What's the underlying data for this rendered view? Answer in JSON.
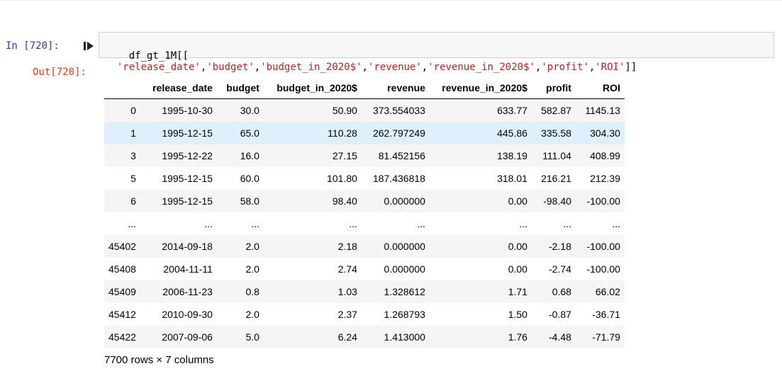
{
  "cell": {
    "in_prompt": "In [720]:",
    "out_prompt": "Out[720]:",
    "code": {
      "prefix": "df_gt_1M[[",
      "args": [
        "'release_date'",
        "'budget'",
        "'budget_in_2020$'",
        "'revenue'",
        "'revenue_in_2020$'",
        "'profit'",
        "'ROI'"
      ],
      "suffix": "]]"
    }
  },
  "table": {
    "columns": [
      "",
      "release_date",
      "budget",
      "budget_in_2020$",
      "revenue",
      "revenue_in_2020$",
      "profit",
      "ROI"
    ],
    "rows": [
      [
        "0",
        "1995-10-30",
        "30.0",
        "50.90",
        "373.554033",
        "633.77",
        "582.87",
        "1145.13"
      ],
      [
        "1",
        "1995-12-15",
        "65.0",
        "110.28",
        "262.797249",
        "445.86",
        "335.58",
        "304.30"
      ],
      [
        "3",
        "1995-12-22",
        "16.0",
        "27.15",
        "81.452156",
        "138.19",
        "111.04",
        "408.99"
      ],
      [
        "5",
        "1995-12-15",
        "60.0",
        "101.80",
        "187.436818",
        "318.01",
        "216.21",
        "212.39"
      ],
      [
        "6",
        "1995-12-15",
        "58.0",
        "98.40",
        "0.000000",
        "0.00",
        "-98.40",
        "-100.00"
      ],
      [
        "...",
        "...",
        "...",
        "...",
        "...",
        "...",
        "...",
        "..."
      ],
      [
        "45402",
        "2014-09-18",
        "2.0",
        "2.18",
        "0.000000",
        "0.00",
        "-2.18",
        "-100.00"
      ],
      [
        "45408",
        "2004-11-11",
        "2.0",
        "2.74",
        "0.000000",
        "0.00",
        "-2.74",
        "-100.00"
      ],
      [
        "45409",
        "2006-11-23",
        "0.8",
        "1.03",
        "1.328612",
        "1.71",
        "0.68",
        "66.02"
      ],
      [
        "45412",
        "2010-09-30",
        "2.0",
        "2.37",
        "1.268793",
        "1.50",
        "-0.87",
        "-36.71"
      ],
      [
        "45422",
        "2007-09-06",
        "5.0",
        "6.24",
        "1.413000",
        "1.76",
        "-4.48",
        "-71.79"
      ]
    ],
    "highlighted_row": 1,
    "footer": "7700 rows × 7 columns"
  },
  "colors": {
    "in_prompt": "#303f9f",
    "out_prompt": "#d84315",
    "string": "#ba2121",
    "row_highlight": "#def0fc",
    "row_stripe": "#f5f5f5"
  },
  "icons": {
    "run": "run-cell-icon"
  }
}
